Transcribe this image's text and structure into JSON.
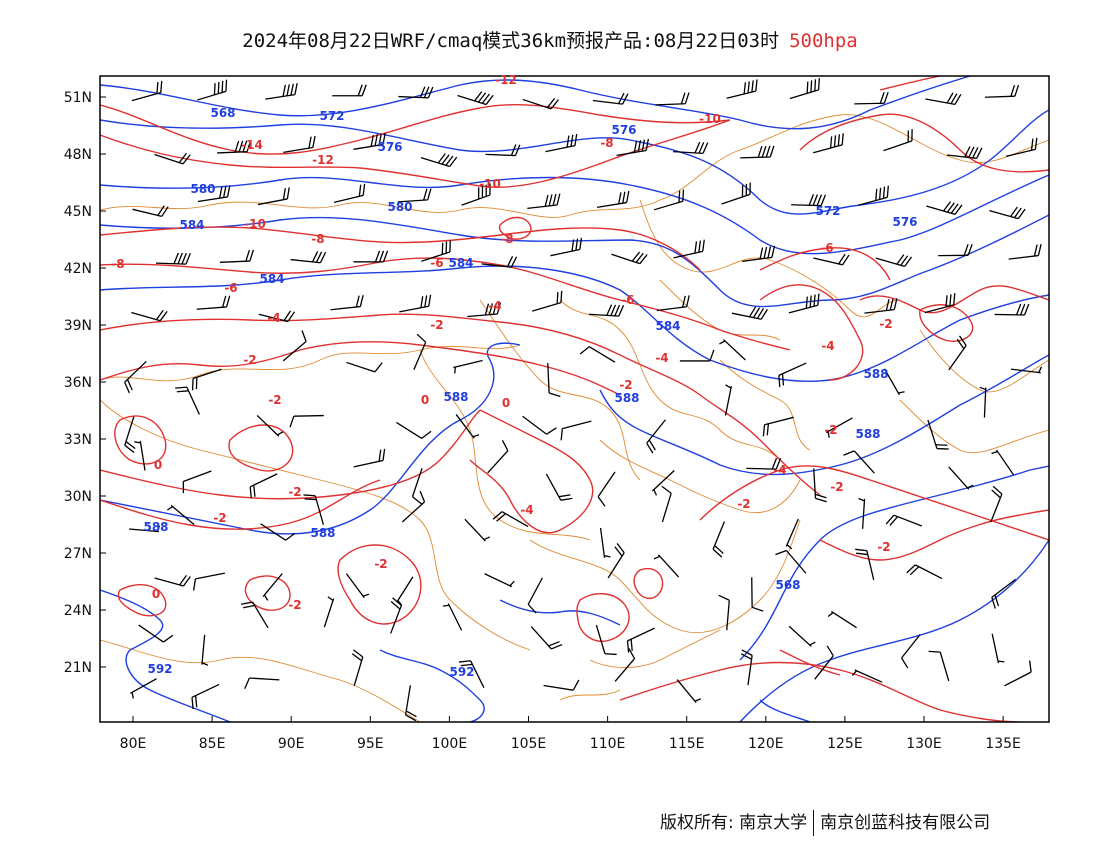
{
  "title": {
    "main": "2024年08月22日WRF/cmaq模式36km预报产品:08月22日03时",
    "level": "500hpa",
    "level_color": "#e03030"
  },
  "axes": {
    "lon_labels": [
      "80E",
      "85E",
      "90E",
      "95E",
      "100E",
      "105E",
      "110E",
      "115E",
      "120E",
      "125E",
      "130E",
      "135E"
    ],
    "lat_labels": [
      "51N",
      "48N",
      "45N",
      "42N",
      "39N",
      "36N",
      "33N",
      "30N",
      "27N",
      "24N",
      "21N"
    ]
  },
  "colors": {
    "height_contour": "#1f3fe0",
    "temperature_contour": "#e03030",
    "borders": "#e08a30",
    "wind_barb": "#000000"
  },
  "height_labels": [
    "568",
    "572",
    "576",
    "576",
    "580",
    "580",
    "584",
    "584",
    "584",
    "584",
    "572",
    "576",
    "588",
    "588",
    "588",
    "588",
    "588",
    "588",
    "592",
    "592",
    "568"
  ],
  "temp_labels": [
    "-14",
    "-12",
    "-12",
    "-10",
    "-10",
    "-10",
    "-8",
    "-8",
    "-8",
    "-8",
    "-6",
    "-6",
    "-6",
    "-6",
    "-4",
    "-4",
    "-4",
    "-4",
    "-4",
    "-2",
    "-2",
    "-2",
    "-2",
    "-2",
    "-2",
    "-2",
    "-2",
    "-2",
    "-2",
    "-2",
    "0",
    "0",
    "0",
    "0",
    "-4",
    "-2",
    "-2"
  ],
  "copyright": {
    "left": "版权所有: 南京大学",
    "right": "南京创蓝科技有限公司"
  }
}
